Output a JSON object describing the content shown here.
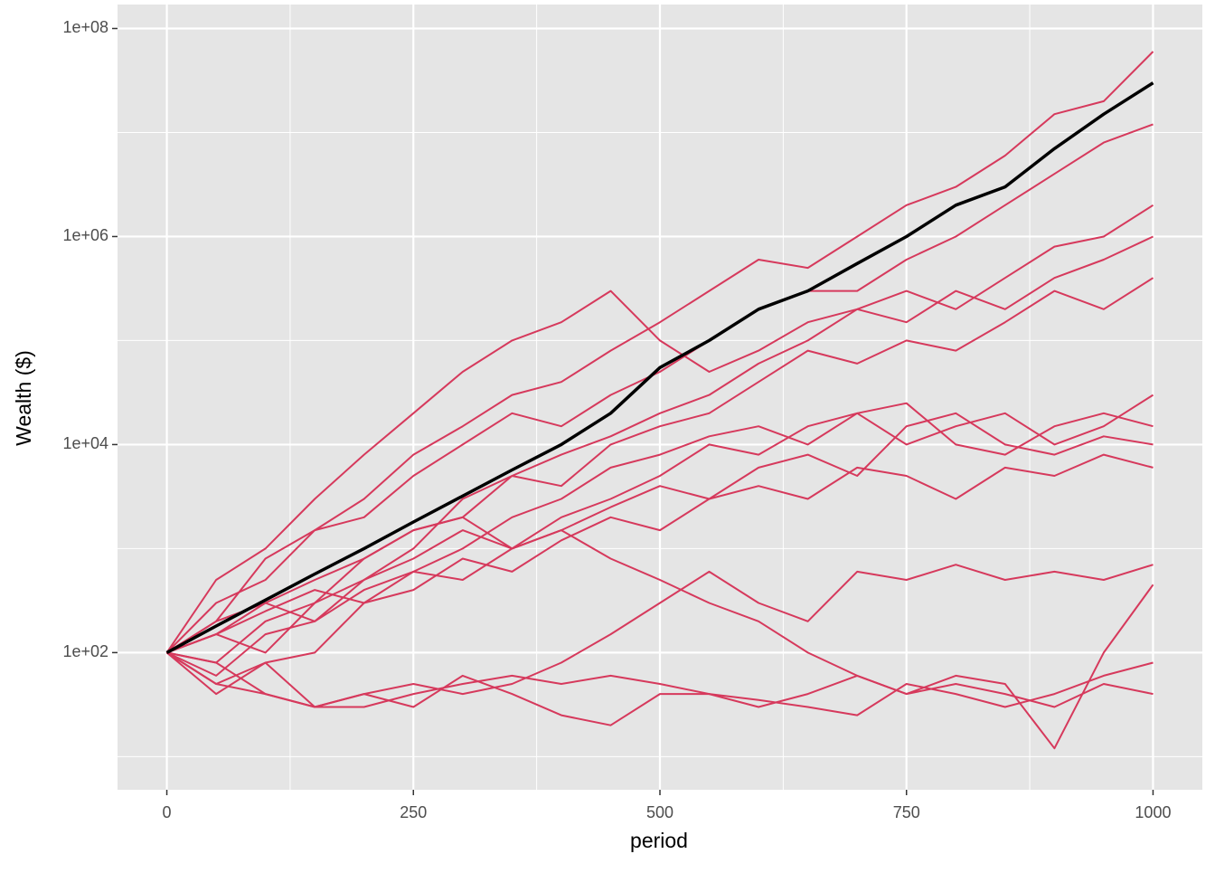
{
  "chart_data": {
    "type": "line",
    "x_label": "period",
    "y_label": "Wealth ($)",
    "x": [
      0,
      50,
      100,
      150,
      200,
      250,
      300,
      350,
      400,
      450,
      500,
      550,
      600,
      650,
      700,
      750,
      800,
      850,
      900,
      950,
      1000
    ],
    "xlim": [
      -50,
      1050
    ],
    "xticks": [
      0,
      250,
      500,
      750,
      1000
    ],
    "minor_xticks": [
      125,
      375,
      625,
      875
    ],
    "log_y": true,
    "ylim": [
      4.8,
      170000000
    ],
    "yticks": [
      {
        "value": 100,
        "label": "1e+02"
      },
      {
        "value": 10000,
        "label": "1e+04"
      },
      {
        "value": 1000000,
        "label": "1e+06"
      },
      {
        "value": 100000000,
        "label": "1e+08"
      }
    ],
    "minor_yticks": [
      10,
      1000,
      100000,
      10000000
    ],
    "grid": true,
    "background": "#e5e5e5",
    "series": [
      {
        "color": "#d6395c",
        "values": [
          100,
          300,
          500,
          1500,
          3000,
          8000,
          15000,
          30000,
          40000,
          80000,
          150000,
          300000,
          600000,
          500000,
          1000000,
          2000000,
          3000000,
          6000000,
          15000000,
          20000000,
          60000000
        ]
      },
      {
        "color": "#d6395c",
        "values": [
          100,
          200,
          800,
          1500,
          2000,
          5000,
          10000,
          20000,
          15000,
          30000,
          50000,
          100000,
          200000,
          300000,
          300000,
          600000,
          1000000,
          2000000,
          4000000,
          8000000,
          12000000
        ]
      },
      {
        "color": "#d6395c",
        "values": [
          100,
          500,
          1000,
          3000,
          8000,
          20000,
          50000,
          100000,
          150000,
          300000,
          100000,
          50000,
          80000,
          150000,
          200000,
          300000,
          200000,
          400000,
          800000,
          1000000,
          2000000
        ]
      },
      {
        "color": "#d6395c",
        "values": [
          100,
          80,
          200,
          300,
          800,
          1500,
          2000,
          5000,
          8000,
          12000,
          20000,
          30000,
          60000,
          100000,
          200000,
          150000,
          300000,
          200000,
          400000,
          600000,
          1000000
        ]
      },
      {
        "color": "#d6395c",
        "values": [
          100,
          150,
          100,
          300,
          500,
          1000,
          3000,
          5000,
          4000,
          10000,
          15000,
          20000,
          40000,
          80000,
          60000,
          100000,
          80000,
          150000,
          300000,
          200000,
          400000
        ]
      },
      {
        "color": "#d6395c",
        "values": [
          100,
          200,
          300,
          200,
          500,
          800,
          1500,
          1000,
          2000,
          3000,
          5000,
          10000,
          8000,
          15000,
          20000,
          10000,
          15000,
          20000,
          10000,
          15000,
          30000
        ]
      },
      {
        "color": "#d6395c",
        "values": [
          100,
          60,
          150,
          200,
          400,
          600,
          500,
          1000,
          1500,
          2500,
          4000,
          3000,
          6000,
          8000,
          5000,
          15000,
          20000,
          10000,
          8000,
          12000,
          10000
        ]
      },
      {
        "color": "#d6395c",
        "values": [
          100,
          50,
          80,
          100,
          300,
          400,
          800,
          600,
          1200,
          2000,
          1500,
          3000,
          4000,
          3000,
          6000,
          5000,
          3000,
          6000,
          5000,
          8000,
          6000
        ]
      },
      {
        "color": "#d6395c",
        "values": [
          100,
          150,
          250,
          400,
          300,
          600,
          1000,
          2000,
          3000,
          6000,
          8000,
          12000,
          15000,
          10000,
          20000,
          25000,
          10000,
          8000,
          15000,
          20000,
          15000
        ]
      },
      {
        "color": "#d6395c",
        "values": [
          100,
          40,
          80,
          30,
          40,
          50,
          40,
          50,
          80,
          150,
          300,
          600,
          300,
          200,
          600,
          500,
          700,
          500,
          600,
          500,
          700
        ]
      },
      {
        "color": "#d6395c",
        "values": [
          100,
          50,
          40,
          30,
          30,
          40,
          50,
          60,
          50,
          60,
          50,
          40,
          30,
          40,
          60,
          40,
          60,
          50,
          12,
          100,
          450
        ]
      },
      {
        "color": "#d6395c",
        "values": [
          100,
          80,
          40,
          30,
          40,
          30,
          60,
          40,
          25,
          20,
          40,
          40,
          35,
          30,
          25,
          50,
          40,
          30,
          40,
          60,
          80
        ]
      },
      {
        "color": "#d6395c",
        "values": [
          100,
          150,
          300,
          500,
          800,
          1500,
          2000,
          1000,
          1500,
          800,
          500,
          300,
          200,
          100,
          60,
          40,
          50,
          40,
          30,
          50,
          40
        ]
      },
      {
        "color": "#000000",
        "line_width": 3.5,
        "values": [
          100,
          180,
          320,
          570,
          1000,
          1800,
          3200,
          5700,
          10000,
          20000,
          55000,
          100000,
          200000,
          300000,
          550000,
          1000000,
          2000000,
          3000000,
          7000000,
          15000000,
          30000000
        ]
      }
    ]
  }
}
